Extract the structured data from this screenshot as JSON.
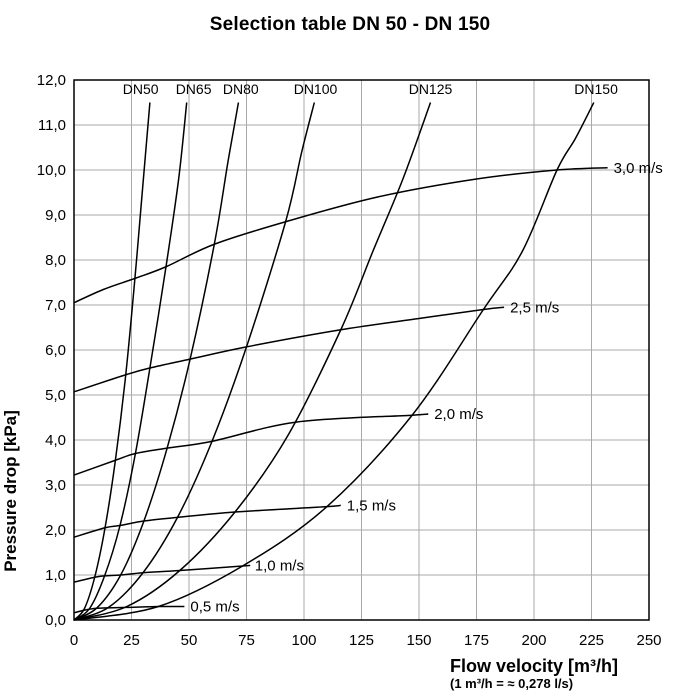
{
  "header": {
    "title": "Selection table DN 50 - DN 150"
  },
  "axes": {
    "y_title": "Pressure drop [kPa]",
    "x_title": "Flow velocity [m³/h]",
    "x_note": "(1 m³/h = ≈ 0,278 l/s)"
  },
  "chart_data": {
    "type": "line",
    "title": "Selection table DN 50 - DN 150",
    "xlabel": "Flow velocity [m³/h]",
    "xlabel_note": "(1 m³/h = ≈ 0,278 l/s)",
    "ylabel": "Pressure drop [kPa]",
    "xlim": [
      0,
      250
    ],
    "ylim": [
      0,
      12
    ],
    "grid": true,
    "legend_position": "inline-labels",
    "axis_color": "#000000",
    "grid_color": "#a9a9a9",
    "curve_color": "#000000",
    "xticks": [
      {
        "v": 0,
        "label": "0"
      },
      {
        "v": 25,
        "label": "25"
      },
      {
        "v": 50,
        "label": "50"
      },
      {
        "v": 75,
        "label": "75"
      },
      {
        "v": 100,
        "label": "100"
      },
      {
        "v": 125,
        "label": "125"
      },
      {
        "v": 150,
        "label": "150"
      },
      {
        "v": 175,
        "label": "175"
      },
      {
        "v": 200,
        "label": "200"
      },
      {
        "v": 225,
        "label": "225"
      },
      {
        "v": 250,
        "label": "250"
      }
    ],
    "yticks": [
      {
        "v": 0,
        "label": "0,0"
      },
      {
        "v": 1,
        "label": "1,0"
      },
      {
        "v": 2,
        "label": "2,0"
      },
      {
        "v": 3,
        "label": "3,0"
      },
      {
        "v": 4,
        "label": "4,0"
      },
      {
        "v": 5,
        "label": "5,0"
      },
      {
        "v": 6,
        "label": "6,0"
      },
      {
        "v": 7,
        "label": "7,0"
      },
      {
        "v": 8,
        "label": "8,0"
      },
      {
        "v": 9,
        "label": "9,0"
      },
      {
        "v": 10,
        "label": "10,0"
      },
      {
        "v": 11,
        "label": "11,0"
      },
      {
        "v": 12,
        "label": "12,0"
      }
    ],
    "dn_curves": [
      {
        "name": "DN50",
        "label": "DN50",
        "label_x": 29,
        "points": [
          [
            0,
            0
          ],
          [
            4.5,
            0.25
          ],
          [
            9,
            0.95
          ],
          [
            13.5,
            2.05
          ],
          [
            18,
            3.55
          ],
          [
            22.5,
            5.45
          ],
          [
            26.5,
            7.6
          ],
          [
            30,
            9.7
          ],
          [
            33,
            11.5
          ]
        ]
      },
      {
        "name": "DN65",
        "label": "DN65",
        "label_x": 52,
        "points": [
          [
            0,
            0
          ],
          [
            6.7,
            0.25
          ],
          [
            13.3,
            0.98
          ],
          [
            20,
            2.1
          ],
          [
            26.7,
            3.7
          ],
          [
            33,
            5.6
          ],
          [
            40,
            7.85
          ],
          [
            45.5,
            9.8
          ],
          [
            49,
            11.5
          ]
        ]
      },
      {
        "name": "DN80",
        "label": "DN80",
        "label_x": 72.5,
        "points": [
          [
            0,
            0
          ],
          [
            10,
            0.27
          ],
          [
            20.3,
            1.0
          ],
          [
            30.4,
            2.2
          ],
          [
            40.5,
            3.82
          ],
          [
            50.5,
            5.8
          ],
          [
            61,
            8.35
          ],
          [
            67,
            10.2
          ],
          [
            71.5,
            11.5
          ]
        ]
      },
      {
        "name": "DN100",
        "label": "DN100",
        "label_x": 105,
        "points": [
          [
            0,
            0
          ],
          [
            15,
            0.28
          ],
          [
            30,
            1.05
          ],
          [
            45,
            2.28
          ],
          [
            60,
            3.97
          ],
          [
            75,
            6.07
          ],
          [
            92,
            8.85
          ],
          [
            99,
            10.4
          ],
          [
            104.5,
            11.5
          ]
        ]
      },
      {
        "name": "DN125",
        "label": "DN125",
        "label_x": 155,
        "points": [
          [
            0,
            0
          ],
          [
            23,
            0.3
          ],
          [
            46,
            1.1
          ],
          [
            70,
            2.4
          ],
          [
            93,
            4.1
          ],
          [
            116,
            6.45
          ],
          [
            130,
            8.2
          ],
          [
            143,
            9.8
          ],
          [
            155,
            11.5
          ]
        ]
      },
      {
        "name": "DN150",
        "label": "DN150",
        "label_x": 227,
        "points": [
          [
            0,
            0
          ],
          [
            36.7,
            0.3
          ],
          [
            73.3,
            1.2
          ],
          [
            110,
            2.52
          ],
          [
            147,
            4.55
          ],
          [
            178,
            6.9
          ],
          [
            195,
            8.2
          ],
          [
            210,
            10.0
          ],
          [
            218,
            10.7
          ],
          [
            226,
            11.5
          ]
        ]
      }
    ],
    "velocity_curves": [
      {
        "name": "0.5 m/s",
        "label": "0,5 m/s",
        "points": [
          [
            0,
            0.16
          ],
          [
            4.5,
            0.22
          ],
          [
            6.7,
            0.24
          ],
          [
            10,
            0.26
          ],
          [
            15,
            0.27
          ],
          [
            23,
            0.28
          ],
          [
            36.7,
            0.3
          ],
          [
            48,
            0.3
          ]
        ]
      },
      {
        "name": "1.0 m/s",
        "label": "1,0 m/s",
        "points": [
          [
            0,
            0.84
          ],
          [
            9,
            0.95
          ],
          [
            13.3,
            0.98
          ],
          [
            20.3,
            1.0
          ],
          [
            30,
            1.05
          ],
          [
            46,
            1.1
          ],
          [
            73.3,
            1.2
          ],
          [
            76,
            1.21
          ]
        ]
      },
      {
        "name": "1.5 m/s",
        "label": "1,5 m/s",
        "points": [
          [
            0,
            1.84
          ],
          [
            13.5,
            2.05
          ],
          [
            20,
            2.1
          ],
          [
            30.4,
            2.2
          ],
          [
            45,
            2.28
          ],
          [
            70,
            2.4
          ],
          [
            110,
            2.52
          ],
          [
            116,
            2.55
          ]
        ]
      },
      {
        "name": "2.0 m/s",
        "label": "2,0 m/s",
        "points": [
          [
            0,
            3.22
          ],
          [
            18,
            3.55
          ],
          [
            26.7,
            3.7
          ],
          [
            40.5,
            3.82
          ],
          [
            60,
            3.97
          ],
          [
            97,
            4.4
          ],
          [
            147,
            4.55
          ],
          [
            154,
            4.58
          ]
        ]
      },
      {
        "name": "2.5 m/s",
        "label": "2,5 m/s",
        "points": [
          [
            0,
            5.07
          ],
          [
            22.5,
            5.45
          ],
          [
            33,
            5.6
          ],
          [
            50.7,
            5.8
          ],
          [
            75,
            6.07
          ],
          [
            116,
            6.45
          ],
          [
            150,
            6.7
          ],
          [
            178,
            6.9
          ],
          [
            187,
            6.95
          ]
        ]
      },
      {
        "name": "3.0 m/s",
        "label": "3,0 m/s",
        "points": [
          [
            0,
            7.05
          ],
          [
            13,
            7.35
          ],
          [
            27,
            7.6
          ],
          [
            40,
            7.85
          ],
          [
            61,
            8.35
          ],
          [
            92,
            8.85
          ],
          [
            132,
            9.4
          ],
          [
            175,
            9.8
          ],
          [
            210,
            10.0
          ],
          [
            232,
            10.05
          ]
        ]
      }
    ]
  }
}
